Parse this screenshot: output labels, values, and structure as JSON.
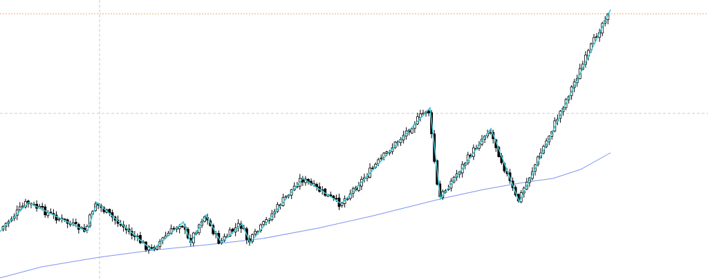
{
  "chart_data": {
    "type": "candlestick",
    "ylim": [
      0,
      405
    ],
    "grid": {
      "horizontal": [
        164
      ],
      "vertical": [
        144
      ]
    },
    "reference_line": {
      "value": 20,
      "color": "#f7a35c"
    },
    "colors": {
      "up_body": "#ffffff",
      "down_body": "#000000",
      "wick": "#000000",
      "zigzag": "#3cc8d2",
      "moving_average": "#7b93f2",
      "grid": "#c8c8c8"
    },
    "zigzag": [
      {
        "x": 0,
        "y": 335
      },
      {
        "x": 41,
        "y": 293
      },
      {
        "x": 126,
        "y": 335
      },
      {
        "x": 140,
        "y": 293
      },
      {
        "x": 220,
        "y": 362
      },
      {
        "x": 265,
        "y": 321
      },
      {
        "x": 276,
        "y": 351
      },
      {
        "x": 298,
        "y": 311
      },
      {
        "x": 320,
        "y": 351
      },
      {
        "x": 350,
        "y": 324
      },
      {
        "x": 362,
        "y": 351
      },
      {
        "x": 438,
        "y": 258
      },
      {
        "x": 494,
        "y": 295
      },
      {
        "x": 622,
        "y": 156
      },
      {
        "x": 637,
        "y": 288
      },
      {
        "x": 710,
        "y": 186
      },
      {
        "x": 751,
        "y": 292
      },
      {
        "x": 883,
        "y": 14
      }
    ],
    "moving_average": [
      {
        "x": 0,
        "y": 402
      },
      {
        "x": 60,
        "y": 386
      },
      {
        "x": 144,
        "y": 372
      },
      {
        "x": 220,
        "y": 362
      },
      {
        "x": 300,
        "y": 354
      },
      {
        "x": 380,
        "y": 345
      },
      {
        "x": 460,
        "y": 330
      },
      {
        "x": 540,
        "y": 312
      },
      {
        "x": 600,
        "y": 297
      },
      {
        "x": 640,
        "y": 287
      },
      {
        "x": 700,
        "y": 274
      },
      {
        "x": 751,
        "y": 265
      },
      {
        "x": 800,
        "y": 258
      },
      {
        "x": 840,
        "y": 245
      },
      {
        "x": 883,
        "y": 221
      }
    ],
    "candle_x": {
      "start": 3,
      "step": 4.05,
      "count": 217
    }
  }
}
